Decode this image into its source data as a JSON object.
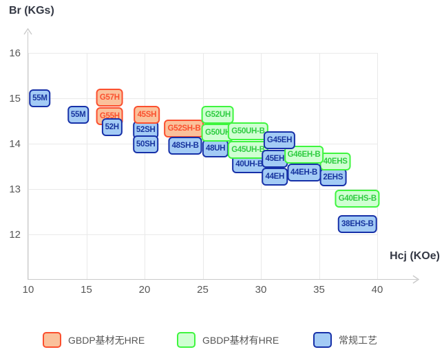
{
  "chart_data": {
    "type": "scatter",
    "title": "",
    "xlabel": "Hcj (KOe)",
    "ylabel": "Br (KGs)",
    "x_ticks": [
      10,
      15,
      20,
      25,
      30,
      35,
      40
    ],
    "y_ticks": [
      16,
      15,
      14,
      13,
      12
    ],
    "xlim": [
      10,
      43.5
    ],
    "ylim": [
      11,
      16.5
    ],
    "grid": true,
    "legend_position": "bottom",
    "point_style": "rounded-label-box",
    "series": [
      {
        "name": "GBDP基材无HRE",
        "fill": "#fac19b",
        "border": "#fb4f2e",
        "text_color": "#fa502e",
        "points": [
          {
            "label": "G57H",
            "hcj": 17.0,
            "br": 15.02
          },
          {
            "label": "G55H",
            "hcj": 17.0,
            "br": 14.6
          },
          {
            "label": "45SH",
            "hcj": 20.2,
            "br": 14.64
          },
          {
            "label": "G52SH-B",
            "hcj": 23.4,
            "br": 14.34
          }
        ]
      },
      {
        "name": "GBDP基材有HRE",
        "fill": "#cfffd2",
        "border": "#3ef53e",
        "text_color": "#2ecc40",
        "points": [
          {
            "label": "G52UH",
            "hcj": 26.3,
            "br": 14.64
          },
          {
            "label": "G50UH",
            "hcj": 26.3,
            "br": 14.25
          },
          {
            "label": "G50UH-B",
            "hcj": 28.9,
            "br": 14.28
          },
          {
            "label": "G45UH-B",
            "hcj": 28.9,
            "br": 13.86
          },
          {
            "label": "G46EH-B",
            "hcj": 33.7,
            "br": 13.76
          },
          {
            "label": "40EHS",
            "hcj": 36.4,
            "br": 13.6
          },
          {
            "label": "G40EHS-B",
            "hcj": 38.3,
            "br": 12.79
          }
        ]
      },
      {
        "name": "常规工艺",
        "fill": "#a3cbf5",
        "border": "#1630a8",
        "text_color": "#17349e",
        "points": [
          {
            "label": "55M",
            "hcj": 11.0,
            "br": 15.0
          },
          {
            "label": "55M",
            "hcj": 14.3,
            "br": 14.63
          },
          {
            "label": "52H",
            "hcj": 17.2,
            "br": 14.36
          },
          {
            "label": "52SH",
            "hcj": 20.1,
            "br": 14.3
          },
          {
            "label": "50SH",
            "hcj": 20.1,
            "br": 13.98
          },
          {
            "label": "48SH-B",
            "hcj": 23.5,
            "br": 13.95
          },
          {
            "label": "48UH",
            "hcj": 26.1,
            "br": 13.9
          },
          {
            "label": "40UH-B",
            "hcj": 29.0,
            "br": 13.55
          },
          {
            "label": "G45EH",
            "hcj": 31.6,
            "br": 14.08
          },
          {
            "label": "45EH",
            "hcj": 31.2,
            "br": 13.66
          },
          {
            "label": "44EH",
            "hcj": 31.2,
            "br": 13.27
          },
          {
            "label": "44EH-B",
            "hcj": 33.7,
            "br": 13.36
          },
          {
            "label": "2EHS",
            "hcj": 36.2,
            "br": 13.26
          },
          {
            "label": "38EHS-B",
            "hcj": 38.3,
            "br": 12.23
          }
        ]
      }
    ]
  },
  "colors": {
    "grid": "#e9e9e9",
    "axis": "#c9c9c9",
    "tick_text": "#575757",
    "axis_title_text": "#343844",
    "legend_text": "#555555",
    "background": "#ffffff"
  }
}
